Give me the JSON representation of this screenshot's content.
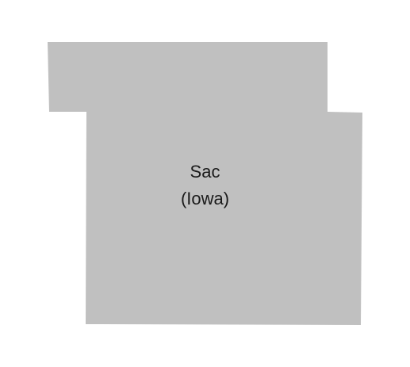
{
  "map": {
    "county": {
      "name": "Sac",
      "state": "(Iowa)",
      "fill_color": "#c0c0c0"
    },
    "background_color": "#ffffff"
  }
}
